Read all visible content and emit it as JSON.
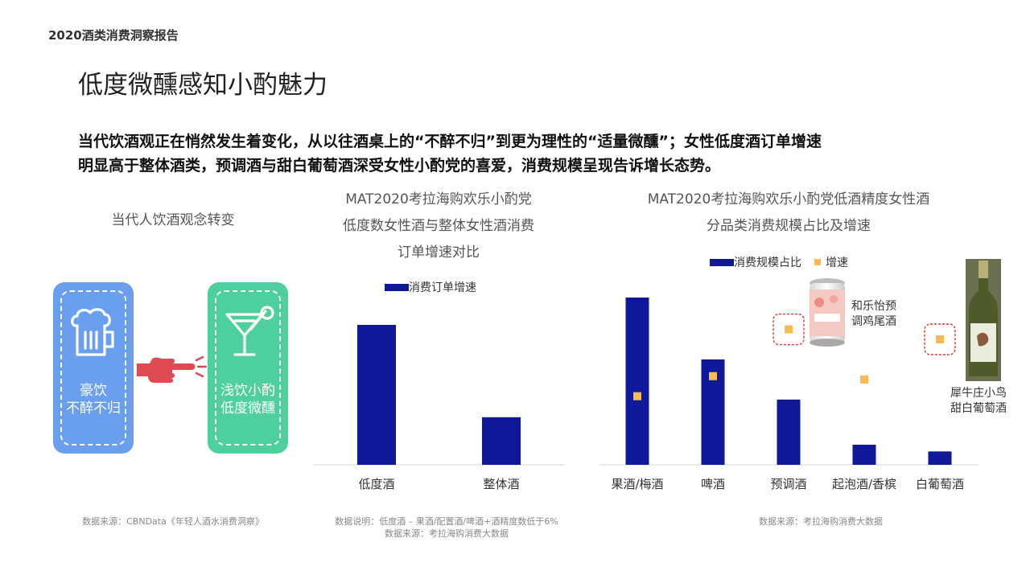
{
  "header": {
    "report_title": "2020酒类消费洞察报告"
  },
  "page": {
    "title": "低度微醺感知小酌魅力",
    "intro_lines": [
      "当代饮酒观正在悄然发生着变化，从以往酒桌上的“不醉不归”到更为理性的“适量微醺”；女性低度酒订单增速",
      "明显高于整体酒类，预调酒与甜白葡萄酒深受女性小酌党的喜爱，消费规模呈现告诉增长态势。"
    ]
  },
  "panel1": {
    "title": "当代人饮酒观念转变",
    "left_card": {
      "line1": "豪饮",
      "line2": "不醉不归",
      "color": "#6a9ff0",
      "icon": "beer-mug-icon"
    },
    "right_card": {
      "line1": "浅饮小酌",
      "line2": "低度微醺",
      "color": "#4ecf9e",
      "icon": "cocktail-glass-icon"
    },
    "arrow_icon": "pointing-hand-icon",
    "arrow_color": "#e04a50",
    "source": "数据来源：CBNData《年轻人酒水消费洞察》"
  },
  "panel2": {
    "title_lines": [
      "MAT2020考拉海购欢乐小酌党",
      "低度数女性酒与整体女性酒消费",
      "订单增速对比"
    ],
    "legend": "消费订单增速",
    "note_line1": "数据说明：低度酒 – 果酒/配置酒/啤酒+酒精度数低于6%",
    "note_line2": "数据来源：考拉海购消费大数据"
  },
  "panel3": {
    "title_lines": [
      "MAT2020考拉海购欢乐小酌党低酒精度女性酒",
      "分品类消费规模占比及增速"
    ],
    "legend_share": "消费规模占比",
    "legend_growth": "增速",
    "product1": {
      "line1": "和乐怡预",
      "line2": "调鸡尾酒",
      "icon": "canned-cocktail-icon"
    },
    "product2": {
      "line1": "犀牛庄小鸟",
      "line2": "甜白葡萄酒",
      "icon": "wine-bottle-icon"
    },
    "source": "数据来源：考拉海购消费大数据"
  },
  "colors": {
    "bar": "#10189a",
    "growth_marker": "#f7bd52",
    "highlight_box": "#d63a3a"
  },
  "chart_data": [
    {
      "type": "bar",
      "title": "MAT2020考拉海购欢乐小酌党低度数女性酒与整体女性酒消费订单增速对比",
      "categories": [
        "低度酒",
        "整体酒"
      ],
      "series": [
        {
          "name": "消费订单增速",
          "values": [
            100,
            34
          ]
        }
      ],
      "ylim": [
        0,
        100
      ],
      "grid": false,
      "legend_position": "top"
    },
    {
      "type": "bar",
      "title": "MAT2020考拉海购欢乐小酌党低酒精度女性酒分品类消费规模占比及增速",
      "categories": [
        "果酒/梅酒",
        "啤酒",
        "预调酒",
        "起泡酒/香槟",
        "白葡萄酒"
      ],
      "series": [
        {
          "name": "消费规模占比",
          "values": [
            100,
            63,
            39,
            12,
            8
          ]
        },
        {
          "name": "增速",
          "values": [
            41,
            53,
            81,
            51,
            75
          ]
        }
      ],
      "highlighted_categories": [
        "预调酒",
        "白葡萄酒"
      ],
      "ylim": [
        0,
        100
      ],
      "grid": false,
      "legend_position": "top"
    }
  ]
}
